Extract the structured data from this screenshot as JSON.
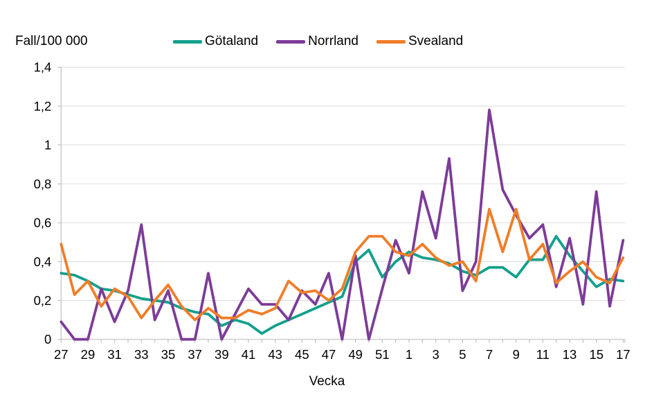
{
  "chart_data": {
    "type": "line",
    "ylabel": "Fall/100 000",
    "xlabel": "Vecka",
    "ylim": [
      0,
      1.4
    ],
    "grid": true,
    "legend_position": "top",
    "y_tick_labels": [
      "0",
      "0,2",
      "0,4",
      "0,6",
      "0,8",
      "1",
      "1,2",
      "1,4"
    ],
    "y_tick_values": [
      0,
      0.2,
      0.4,
      0.6,
      0.8,
      1.0,
      1.2,
      1.4
    ],
    "categories": [
      "27",
      "28",
      "29",
      "30",
      "31",
      "32",
      "33",
      "34",
      "35",
      "36",
      "37",
      "38",
      "39",
      "40",
      "41",
      "42",
      "43",
      "44",
      "45",
      "46",
      "47",
      "48",
      "49",
      "50",
      "51",
      "52",
      "1",
      "2",
      "3",
      "4",
      "5",
      "6",
      "7",
      "8",
      "9",
      "10",
      "11",
      "12",
      "13",
      "14",
      "15",
      "16",
      "17"
    ],
    "x_labeled_categories": [
      "27",
      "29",
      "31",
      "33",
      "35",
      "37",
      "39",
      "41",
      "43",
      "45",
      "47",
      "49",
      "51",
      "1",
      "3",
      "5",
      "7",
      "9",
      "11",
      "13",
      "15",
      "17"
    ],
    "series": [
      {
        "name": "Götaland",
        "color": "#12A08C",
        "values": [
          0.34,
          0.33,
          0.3,
          0.26,
          0.25,
          0.23,
          0.21,
          0.2,
          0.19,
          0.16,
          0.14,
          0.13,
          0.07,
          0.1,
          0.08,
          0.03,
          0.07,
          0.1,
          0.13,
          0.16,
          0.19,
          0.22,
          0.4,
          0.46,
          0.32,
          0.4,
          0.45,
          0.42,
          0.41,
          0.39,
          0.35,
          0.33,
          0.37,
          0.37,
          0.32,
          0.41,
          0.41,
          0.53,
          0.43,
          0.35,
          0.27,
          0.31,
          0.3
        ]
      },
      {
        "name": "Norrland",
        "color": "#7D3C98",
        "values": [
          0.09,
          0.0,
          0.0,
          0.26,
          0.09,
          0.25,
          0.59,
          0.1,
          0.25,
          0.0,
          0.0,
          0.34,
          0.0,
          0.13,
          0.26,
          0.18,
          0.18,
          0.1,
          0.25,
          0.18,
          0.34,
          0.0,
          0.43,
          0.0,
          0.26,
          0.51,
          0.34,
          0.76,
          0.52,
          0.93,
          0.25,
          0.4,
          1.18,
          0.77,
          0.64,
          0.52,
          0.59,
          0.27,
          0.52,
          0.18,
          0.76,
          0.17,
          0.51
        ]
      },
      {
        "name": "Svealand",
        "color": "#F07D28",
        "values": [
          0.49,
          0.23,
          0.3,
          0.17,
          0.26,
          0.22,
          0.11,
          0.2,
          0.28,
          0.17,
          0.1,
          0.16,
          0.11,
          0.11,
          0.15,
          0.13,
          0.16,
          0.3,
          0.24,
          0.25,
          0.2,
          0.26,
          0.45,
          0.53,
          0.53,
          0.45,
          0.43,
          0.49,
          0.42,
          0.38,
          0.4,
          0.3,
          0.67,
          0.45,
          0.67,
          0.41,
          0.49,
          0.29,
          0.35,
          0.4,
          0.32,
          0.29,
          0.42
        ]
      }
    ]
  },
  "colors": {
    "gridline": "#D9D9D9",
    "axis": "#BFBFBF",
    "text": "#000000",
    "background": "#FFFFFF"
  }
}
